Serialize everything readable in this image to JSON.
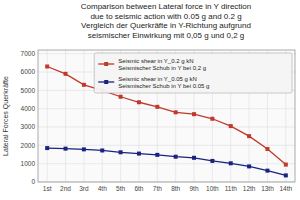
{
  "chart_data": {
    "type": "line",
    "title": "Comparison between Lateral force in Y direction\ndue to seismic action with 0.05 g and 0.2 g\nVergleich der Querkräfte in Y-Richtung aufgrund\nseismischer Einwirkung mit 0,05 g und 0,2 g",
    "y_label": "Lateral Forces Querkräfte",
    "categories": [
      "1st",
      "2nd",
      "3rd",
      "4th",
      "5th",
      "6th",
      "7th",
      "8th",
      "9th",
      "10th",
      "11th",
      "12th",
      "13th",
      "14th"
    ],
    "series": [
      {
        "name": "Seismic shear in Y_0.2 g kN\nSeismischer Schub in Y bei 0,2 g",
        "color": "#c0392b",
        "marker": "square",
        "values": [
          6300,
          5900,
          5300,
          5000,
          4650,
          4350,
          4100,
          3800,
          3700,
          3450,
          3050,
          2500,
          1800,
          950
        ]
      },
      {
        "name": "Seismic shear in Y_0.05 g kN\nSeismischer Schub in Y bei 0.05 g",
        "color": "#1a237e",
        "marker": "square",
        "values": [
          1850,
          1820,
          1780,
          1720,
          1620,
          1550,
          1480,
          1380,
          1320,
          1150,
          1020,
          850,
          620,
          360
        ]
      }
    ],
    "ylim": [
      0,
      7200
    ],
    "yticks": [
      0,
      1000,
      2000,
      3000,
      4000,
      5000,
      6000,
      7000
    ],
    "grid": true,
    "legend": "upper right"
  }
}
